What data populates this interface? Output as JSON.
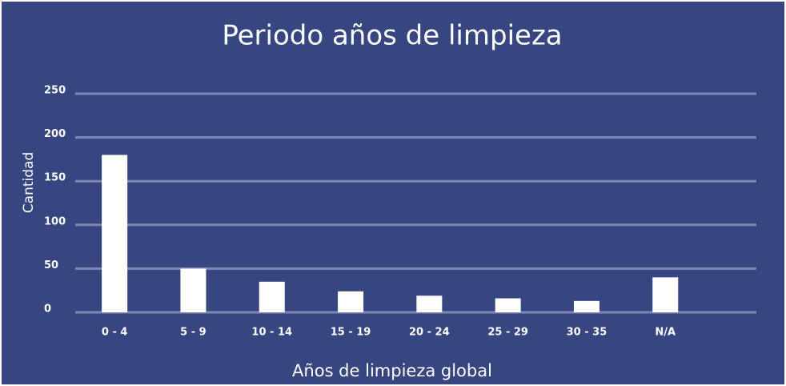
{
  "chart_data": {
    "type": "bar",
    "title": "Periodo años de limpieza",
    "x_label": "Años de limpieza global",
    "y_label": "Cantidad",
    "categories": [
      "0 - 4",
      "5 - 9",
      "10 - 14",
      "15 - 19",
      "20 - 24",
      "25 - 29",
      "30 - 35",
      "N/A"
    ],
    "values": [
      180,
      50,
      35,
      24,
      19,
      16,
      13,
      40
    ],
    "color": "#ffffff",
    "ylim": [
      0,
      250
    ],
    "yticks": [
      0,
      50,
      100,
      150,
      200,
      250
    ],
    "grid": true
  }
}
